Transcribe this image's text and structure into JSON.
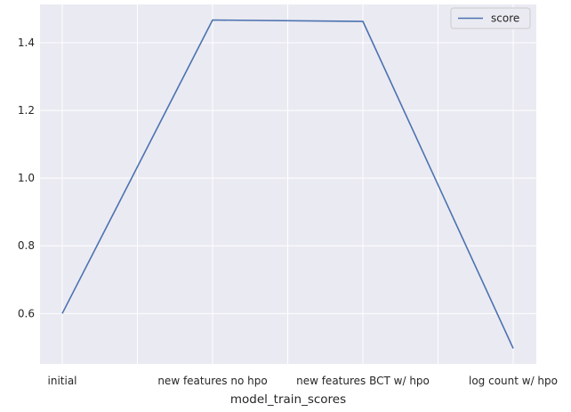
{
  "chart_data": {
    "type": "line",
    "categories": [
      "initial",
      "new features no hpo",
      "new features BCT w/ hpo",
      "log count w/ hpo"
    ],
    "series": [
      {
        "name": "score",
        "values": [
          0.6,
          1.467,
          1.463,
          0.497
        ]
      }
    ],
    "xlabel": "model_train_scores",
    "ylabel": "",
    "ylim": [
      0.451,
      1.513
    ],
    "yticks": [
      0.6,
      0.8,
      1.0,
      1.2,
      1.4
    ],
    "grid": true,
    "legend_position": "top-right",
    "colors": {
      "background": "#eaeaf2",
      "grid": "#ffffff",
      "line": "#4c72b0",
      "text": "#262626"
    }
  }
}
